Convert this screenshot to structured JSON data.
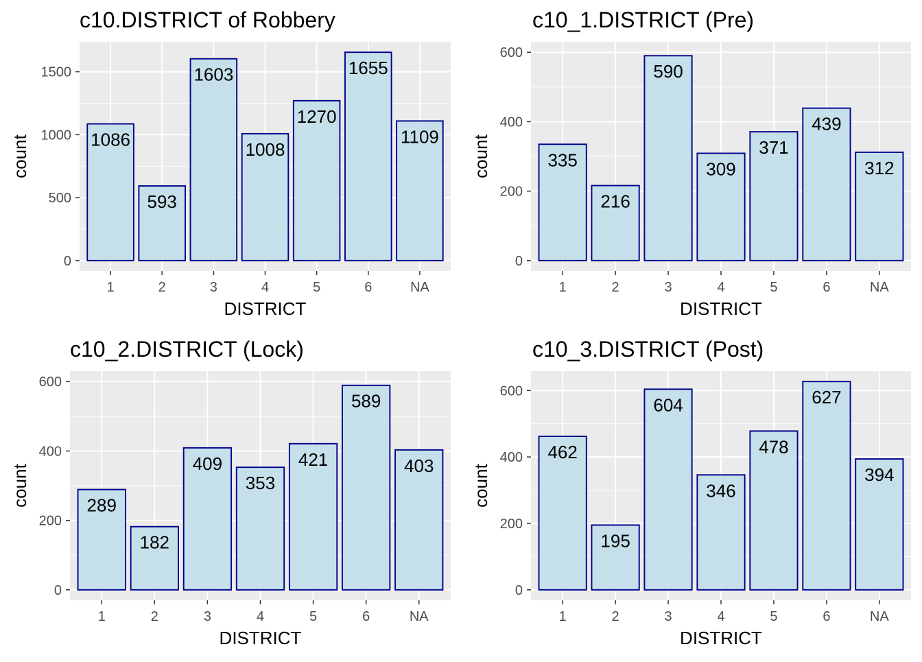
{
  "colors": {
    "panel_bg": "#EBEBEB",
    "grid": "#FFFFFF",
    "bar_fill": "#C3DFEA",
    "bar_stroke": "#00008B",
    "tick_text": "#4D4D4D",
    "label_text": "#000000"
  },
  "chart_data": [
    {
      "type": "bar",
      "title": "c10.DISTRICT of Robbery",
      "xlabel": "DISTRICT",
      "ylabel": "count",
      "categories": [
        "1",
        "2",
        "3",
        "4",
        "5",
        "6",
        "NA"
      ],
      "values": [
        1086,
        593,
        1603,
        1008,
        1270,
        1655,
        1109
      ],
      "data_labels": [
        "1086",
        "593",
        "1603",
        "1008",
        "1270",
        "1655",
        "1109"
      ],
      "yticks": [
        0,
        500,
        1000,
        1500
      ],
      "ytick_labels": [
        "0",
        "500",
        "1000",
        "1500"
      ],
      "ylim": [
        0,
        1655
      ],
      "grid": true,
      "legend": "none"
    },
    {
      "type": "bar",
      "title": "c10_1.DISTRICT (Pre)",
      "xlabel": "DISTRICT",
      "ylabel": "count",
      "categories": [
        "1",
        "2",
        "3",
        "4",
        "5",
        "6",
        "NA"
      ],
      "values": [
        335,
        216,
        590,
        309,
        371,
        439,
        312
      ],
      "data_labels": [
        "335",
        "216",
        "590",
        "309",
        "371",
        "439",
        "312"
      ],
      "yticks": [
        0,
        200,
        400,
        600
      ],
      "ytick_labels": [
        "0",
        "200",
        "400",
        "600"
      ],
      "ylim": [
        0,
        600
      ],
      "grid": true,
      "legend": "none"
    },
    {
      "type": "bar",
      "title": "c10_2.DISTRICT (Lock)",
      "xlabel": "DISTRICT",
      "ylabel": "count",
      "categories": [
        "1",
        "2",
        "3",
        "4",
        "5",
        "6",
        "NA"
      ],
      "values": [
        289,
        182,
        409,
        353,
        421,
        589,
        403
      ],
      "data_labels": [
        "289",
        "182",
        "409",
        "353",
        "421",
        "589",
        "403"
      ],
      "yticks": [
        0,
        200,
        400,
        600
      ],
      "ytick_labels": [
        "0",
        "200",
        "400",
        "600"
      ],
      "ylim": [
        0,
        600
      ],
      "grid": true,
      "legend": "none"
    },
    {
      "type": "bar",
      "title": "c10_3.DISTRICT (Post)",
      "xlabel": "DISTRICT",
      "ylabel": "count",
      "categories": [
        "1",
        "2",
        "3",
        "4",
        "5",
        "6",
        "NA"
      ],
      "values": [
        462,
        195,
        604,
        346,
        478,
        627,
        394
      ],
      "data_labels": [
        "462",
        "195",
        "604",
        "346",
        "478",
        "627",
        "394"
      ],
      "yticks": [
        0,
        200,
        400,
        600
      ],
      "ytick_labels": [
        "0",
        "200",
        "400",
        "600"
      ],
      "ylim": [
        0,
        627
      ],
      "grid": true,
      "legend": "none"
    }
  ]
}
